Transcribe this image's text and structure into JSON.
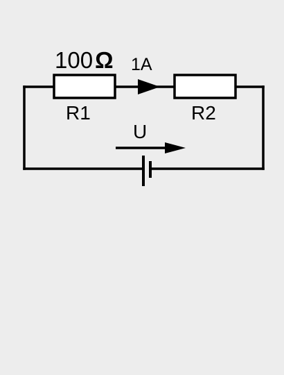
{
  "diagram": {
    "r1": {
      "name": "R1",
      "value": "100",
      "unit": "Ω"
    },
    "r2": {
      "name": "R2"
    },
    "current": {
      "label": "1A"
    },
    "source": {
      "voltage_label": "U"
    }
  },
  "colors": {
    "background": "#ededed",
    "stroke": "#000000",
    "resistor_fill": "#ffffff"
  }
}
